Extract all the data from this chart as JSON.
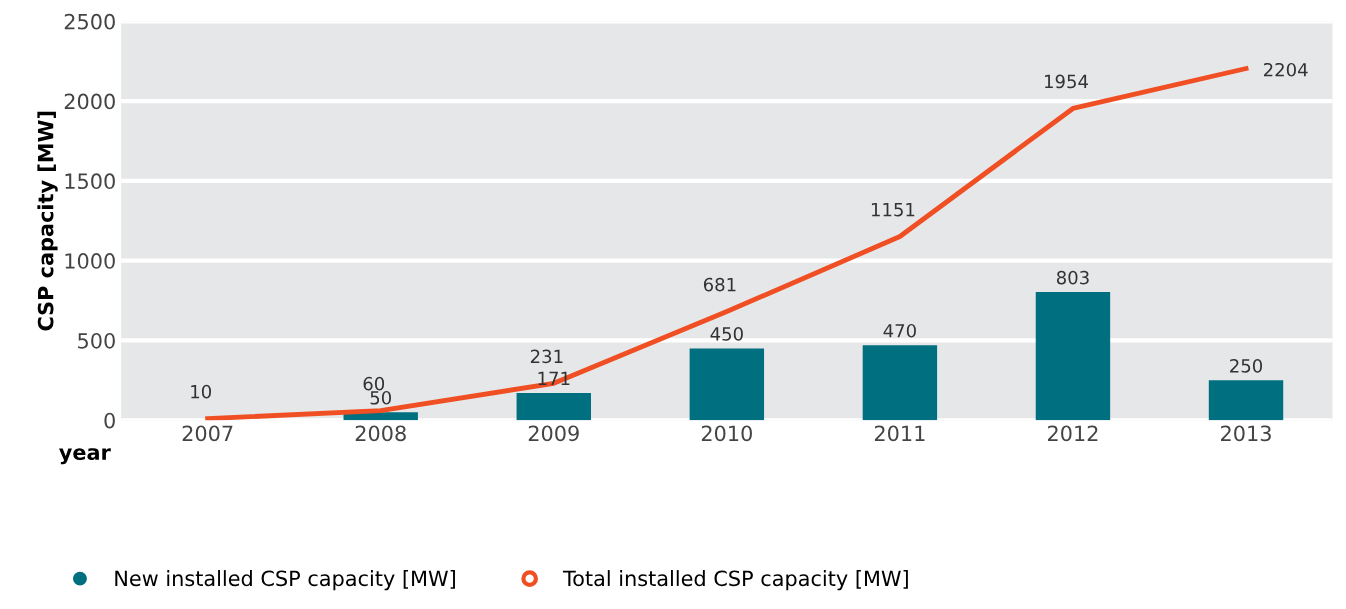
{
  "chart_data": {
    "type": "bar",
    "ylabel": "CSP capacity [MW]",
    "xlabel": "year",
    "categories": [
      "2007",
      "2008",
      "2009",
      "2010",
      "2011",
      "2012",
      "2013"
    ],
    "series": [
      {
        "name": "New installed CSP capacity [MW]",
        "color": "#006f80",
        "values": [
          null,
          50,
          171,
          450,
          470,
          803,
          250
        ]
      },
      {
        "name": "Total installed CSP capacity [MW]",
        "type": "line",
        "color": "#f04e23",
        "marker": "none",
        "values": [
          10,
          60,
          231,
          681,
          1151,
          1954,
          2204
        ]
      }
    ],
    "ylim": [
      0,
      2500
    ],
    "yticks": [
      0,
      500,
      1000,
      1500,
      2000,
      2500
    ],
    "data_labels": true,
    "grid": "y",
    "legend": "bottom left"
  }
}
